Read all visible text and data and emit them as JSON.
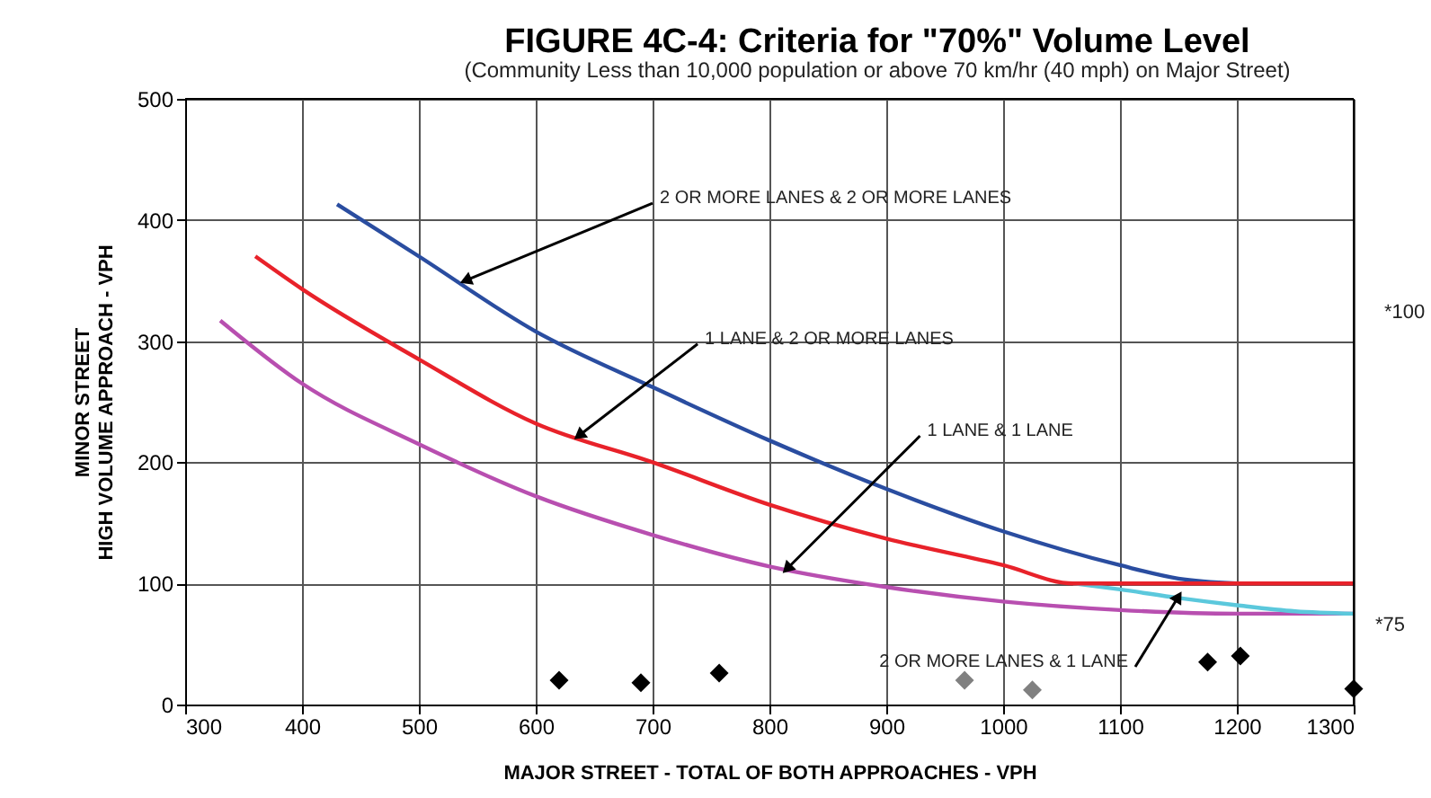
{
  "chart_data": {
    "type": "line",
    "title": "FIGURE 4C-4: Criteria for \"70%\" Volume Level",
    "subtitle": "(Community Less than 10,000 population or above 70 km/hr (40 mph)  on Major Street)",
    "xlabel": "MAJOR STREET - TOTAL OF BOTH APPROACHES - VPH",
    "ylabel": "MINOR STREET\nHIGH VOLUME APPROACH - VPH",
    "xlim": [
      300,
      1300
    ],
    "xticks": [
      300,
      400,
      500,
      600,
      700,
      800,
      900,
      1000,
      1100,
      1200,
      1300
    ],
    "ylim": [
      0,
      500
    ],
    "yticks": [
      0,
      100,
      200,
      300,
      400,
      500
    ],
    "grid": true,
    "legend": false,
    "series": [
      {
        "marker": "none",
        "color": "#b84fb0",
        "x": [
          330,
          400,
          500,
          600,
          700,
          800,
          900,
          1000,
          1100,
          1200,
          1300
        ],
        "values": [
          317,
          265,
          215,
          172,
          140,
          114,
          97,
          85,
          78,
          75,
          75
        ]
      },
      {
        "marker": "none",
        "color": "#5bc8dc",
        "x": [
          1060,
          1100,
          1150,
          1200,
          1250,
          1300
        ],
        "values": [
          100,
          95,
          88,
          82,
          77,
          75
        ]
      },
      {
        "marker": "none",
        "color": "#2a4da0",
        "x": [
          430,
          500,
          600,
          700,
          800,
          900,
          1000,
          1100,
          1150,
          1200
        ],
        "values": [
          413,
          370,
          308,
          262,
          218,
          178,
          143,
          115,
          104,
          100
        ]
      },
      {
        "marker": "none",
        "color": "#e8222a",
        "x": [
          360,
          400,
          500,
          600,
          700,
          800,
          900,
          1000,
          1060,
          1100,
          1200,
          1300
        ],
        "values": [
          370,
          343,
          285,
          232,
          200,
          165,
          137,
          115,
          100,
          100,
          100,
          100
        ]
      },
      {
        "type": "scatter",
        "marker": "diamond",
        "color": "#000000",
        "x": [
          620,
          690,
          757,
          1175,
          1203,
          1300
        ],
        "values": [
          20,
          18,
          26,
          35,
          40,
          13
        ]
      },
      {
        "type": "scatter",
        "marker": "diamond",
        "color": "#808080",
        "x": [
          967,
          1025
        ],
        "values": [
          20,
          12
        ]
      }
    ],
    "annotations": [
      {
        "text": "2 OR MORE LANES & 2 OR MORE LANES",
        "x": 540,
        "y": 350
      },
      {
        "text": "1 LANE & 2 OR MORE LANES",
        "x": 637,
        "y": 222
      },
      {
        "text": "1 LANE & 1 LANE",
        "x": 815,
        "y": 112
      },
      {
        "text": "2 OR MORE LANES & 1 LANE",
        "x": 1150,
        "y": 89
      },
      "*100",
      "*75"
    ]
  }
}
